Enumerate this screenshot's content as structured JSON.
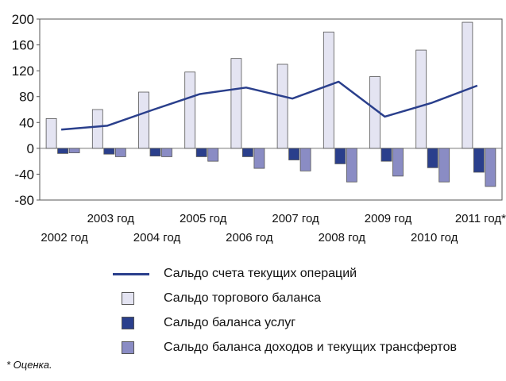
{
  "chart_data": {
    "type": "bar",
    "categories": [
      "2002 год",
      "2003 год",
      "2004 год",
      "2005 год",
      "2006 год",
      "2007 год",
      "2008 год",
      "2009 год",
      "2010 год",
      "2011 год*"
    ],
    "ylim": [
      -80,
      200
    ],
    "yticks": [
      "200",
      "160",
      "120",
      "80",
      "40",
      "0",
      "-40",
      "-80"
    ],
    "ytick_values": [
      200,
      160,
      120,
      80,
      40,
      0,
      -40,
      -80
    ],
    "grid": false,
    "legend_position": "bottom",
    "series": [
      {
        "name": "Сальдо счета текущих операций",
        "type": "line",
        "color": "#2a3f8c",
        "values": [
          29,
          35,
          60,
          84,
          94,
          77,
          103,
          49,
          70,
          97
        ]
      },
      {
        "name": "Сальдо торгового баланса",
        "type": "bar",
        "color": "#e4e4f2",
        "values": [
          46,
          60,
          87,
          118,
          139,
          130,
          180,
          111,
          152,
          195
        ]
      },
      {
        "name": "Сальдо баланса услуг",
        "type": "bar",
        "color": "#2a3f8c",
        "values": [
          -8,
          -9,
          -12,
          -13,
          -13,
          -18,
          -24,
          -20,
          -30,
          -37
        ]
      },
      {
        "name": "Сальдо баланса доходов и текущих трансфертов",
        "type": "bar",
        "color": "#8a8cc4",
        "values": [
          -7,
          -13,
          -13,
          -20,
          -31,
          -35,
          -52,
          -43,
          -52,
          -59
        ]
      }
    ]
  },
  "footnote": "* Оценка."
}
